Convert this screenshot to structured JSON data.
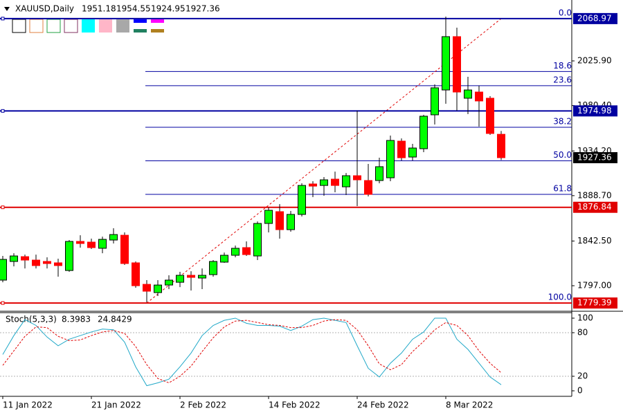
{
  "chart_data": [
    {
      "type": "candlestick",
      "title": "XAUUSD,Daily",
      "categories": [
        "11 Jan 2022",
        null,
        null,
        null,
        null,
        null,
        null,
        null,
        "21 Jan 2022",
        null,
        null,
        null,
        null,
        null,
        null,
        null,
        "2 Feb 2022",
        null,
        null,
        null,
        null,
        null,
        null,
        null,
        "14 Feb 2022",
        null,
        null,
        null,
        null,
        null,
        null,
        null,
        "24 Feb 2022",
        null,
        null,
        null,
        null,
        null,
        null,
        null,
        "8 Mar 2022",
        null,
        null,
        null,
        null,
        null
      ],
      "open": [
        1802.7,
        1821.7,
        1826.6,
        1823.1,
        1821.7,
        1820.3,
        1812.5,
        1842.1,
        1841.4,
        1835.1,
        1843.5,
        1848.4,
        1820.3,
        1798.4,
        1790.0,
        1797.7,
        1800.5,
        1807.6,
        1804.8,
        1808.3,
        1821.0,
        1828.0,
        1835.8,
        1827.3,
        1860.4,
        1872.4,
        1854.1,
        1869.6,
        1900.6,
        1899.1,
        1905.5,
        1897.7,
        1909.0,
        1904.1,
        1904.1,
        1906.9,
        1944.2,
        1928.0,
        1936.5,
        1971.0,
        1996.3,
        2050.6,
        1987.9,
        1994.2,
        1987.9,
        1951.18
      ],
      "high": [
        1827.3,
        1830.1,
        1828.7,
        1828.7,
        1825.9,
        1824.5,
        1843.5,
        1848.4,
        1844.9,
        1847.0,
        1855.5,
        1851.3,
        1821.7,
        1802.7,
        1802.7,
        1807.6,
        1811.1,
        1811.8,
        1814.6,
        1823.1,
        1830.8,
        1837.9,
        1842.1,
        1862.5,
        1876.6,
        1880.1,
        1873.1,
        1901.3,
        1903.4,
        1907.6,
        1913.2,
        1911.8,
        1975.2,
        1921.0,
        1927.3,
        1949.9,
        1947.0,
        1941.4,
        1971.0,
        2002.0,
        2071.0,
        2059.7,
        2009.7,
        2000.6,
        1990.0,
        1954.55
      ],
      "low": [
        1800.5,
        1816.7,
        1814.6,
        1814.6,
        1814.6,
        1806.2,
        1811.1,
        1835.8,
        1834.4,
        1830.1,
        1840.0,
        1818.2,
        1794.9,
        1780.1,
        1786.5,
        1793.5,
        1795.6,
        1792.1,
        1793.5,
        1806.2,
        1820.3,
        1825.9,
        1827.3,
        1823.1,
        1851.3,
        1844.9,
        1852.0,
        1867.5,
        1887.2,
        1888.6,
        1892.1,
        1889.3,
        1878.0,
        1887.9,
        1901.3,
        1903.4,
        1924.5,
        1924.5,
        1933.0,
        1961.1,
        1982.3,
        1975.2,
        1971.7,
        1959.0,
        1950.6,
        1924.95
      ],
      "close": [
        1823.8,
        1827.3,
        1823.1,
        1817.5,
        1819.6,
        1817.5,
        1842.1,
        1840.0,
        1835.8,
        1844.2,
        1849.1,
        1819.6,
        1797.0,
        1791.4,
        1797.7,
        1802.7,
        1807.6,
        1805.5,
        1807.6,
        1821.7,
        1828.0,
        1835.1,
        1828.7,
        1860.4,
        1873.8,
        1854.1,
        1869.6,
        1899.1,
        1898.4,
        1904.8,
        1899.1,
        1909.0,
        1904.8,
        1890.0,
        1918.2,
        1944.9,
        1927.3,
        1937.2,
        1969.6,
        1998.5,
        2050.6,
        1994.2,
        1996.3,
        1985.1,
        1952.0,
        1927.36
      ],
      "up_color": "#00ff00",
      "down_color": "#ff0000",
      "ylim": [
        1771.0,
        2087.9
      ],
      "yticks": [
        {
          "value": 2025.9,
          "label": "2025.90"
        },
        {
          "value": 1980.4,
          "label": "1980.40"
        },
        {
          "value": 1934.2,
          "label": "1934.20"
        },
        {
          "value": 1888.7,
          "label": "1888.70"
        },
        {
          "value": 1842.5,
          "label": "1842.50"
        },
        {
          "value": 1797.0,
          "label": "1797.00"
        }
      ],
      "price_lines": [
        {
          "value": 2068.97,
          "color": "#0000a0"
        },
        {
          "value": 1974.98,
          "color": "#0000a0"
        },
        {
          "value": 1876.84,
          "color": "#e00000"
        },
        {
          "value": 1779.39,
          "color": "#e00000"
        }
      ],
      "fibonacci": {
        "levels": [
          "0.0",
          "18.6",
          "23.6",
          "38.2",
          "50.0",
          "61.8",
          "100.0"
        ],
        "prices": [
          2068.97,
          2015.11,
          2000.63,
          1958.35,
          1924.18,
          1890.01,
          1779.39
        ],
        "color": "#0000a0"
      }
    },
    {
      "type": "line",
      "title": "Stoch(5,3,3)",
      "series": [
        {
          "color": "#20a8c8",
          "dash": false,
          "values": [
            50,
            76,
            98,
            90,
            74,
            62,
            71,
            76,
            81,
            85,
            84,
            67,
            33,
            7,
            11,
            16,
            33,
            52,
            76,
            90,
            97,
            100,
            93,
            90,
            90,
            89,
            83,
            89,
            98,
            100,
            97,
            94,
            62,
            31,
            19,
            38,
            52,
            71,
            81,
            100,
            100,
            71,
            57,
            38,
            19,
            8.3983
          ]
        },
        {
          "color": "#e00000",
          "dash": true,
          "values": [
            35,
            55,
            75,
            88,
            87,
            75,
            69,
            70,
            76,
            81,
            83,
            79,
            61,
            36,
            17,
            11,
            20,
            34,
            54,
            73,
            88,
            96,
            97,
            94,
            91,
            90,
            87,
            87,
            90,
            96,
            98,
            97,
            84,
            62,
            37,
            29,
            36,
            54,
            68,
            84,
            94,
            90,
            76,
            55,
            38,
            24.8429
          ]
        }
      ],
      "ylim": [
        -7.6,
        107.6
      ],
      "yticks": [
        0,
        20,
        80,
        100
      ],
      "levels": [
        20,
        80
      ]
    }
  ]
}
